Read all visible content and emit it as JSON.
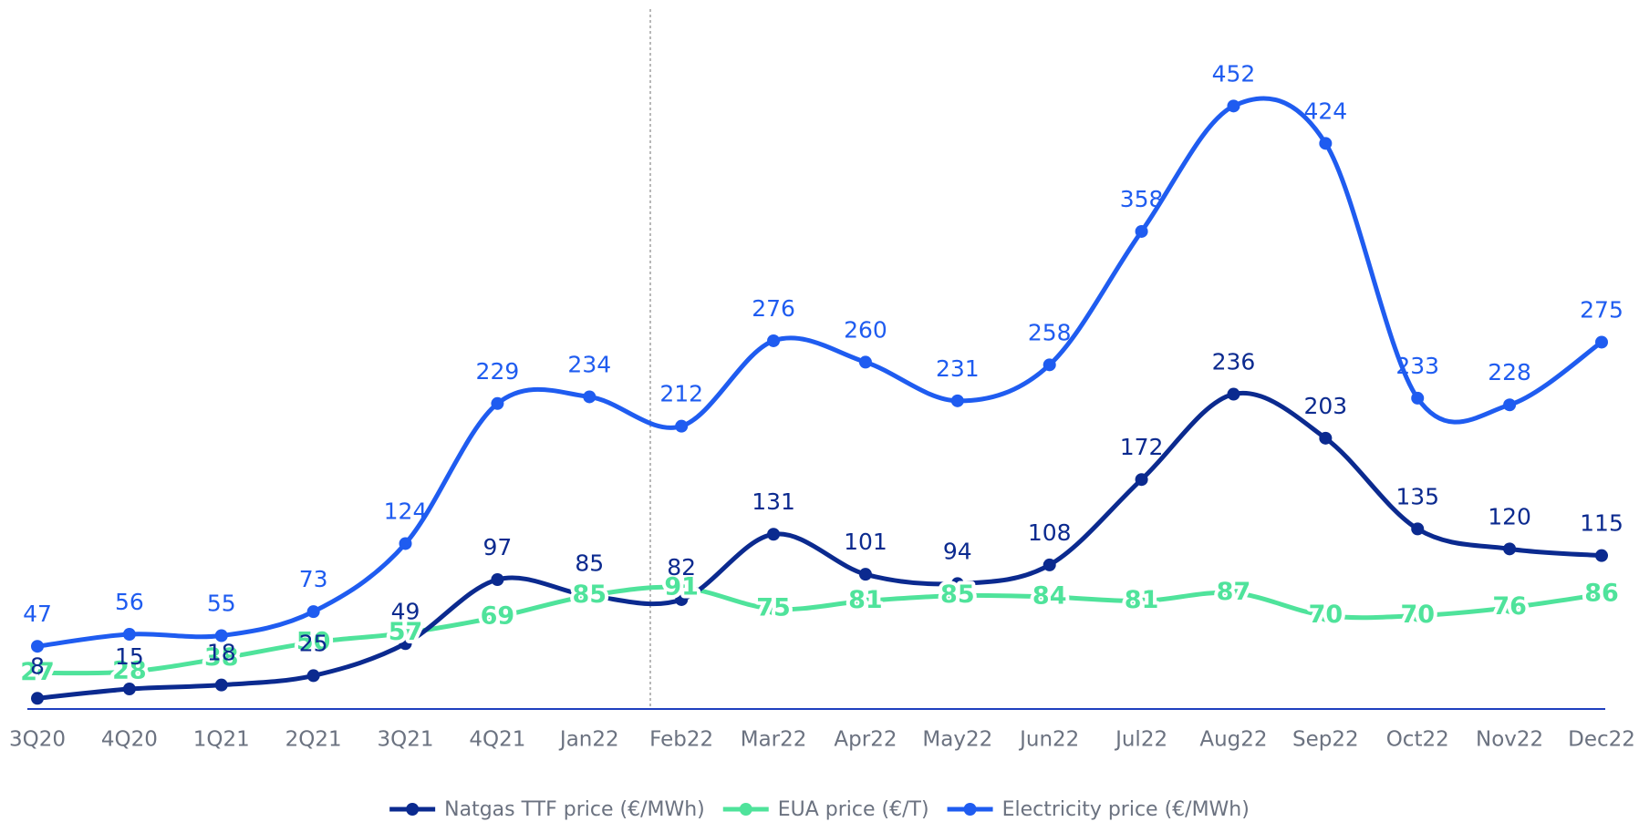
{
  "chart_data": {
    "type": "line",
    "categories": [
      "3Q20",
      "4Q20",
      "1Q21",
      "2Q21",
      "3Q21",
      "4Q21",
      "Jan22",
      "Feb22",
      "Mar22",
      "Apr22",
      "May22",
      "Jun22",
      "Jul22",
      "Aug22",
      "Sep22",
      "Oct22",
      "Nov22",
      "Dec22"
    ],
    "series": [
      {
        "name": "Natgas TTF price (€/MWh)",
        "color": "#0b2a8f",
        "values": [
          8,
          15,
          18,
          25,
          49,
          97,
          85,
          82,
          131,
          101,
          94,
          108,
          172,
          236,
          203,
          135,
          120,
          115
        ]
      },
      {
        "name": "EUA price (€/T)",
        "color": "#4fe39b",
        "values": [
          27,
          28,
          38,
          50,
          57,
          69,
          85,
          91,
          75,
          81,
          85,
          84,
          81,
          87,
          70,
          70,
          76,
          86
        ]
      },
      {
        "name": "Electricity price (€/MWh)",
        "color": "#1f5cf0",
        "values": [
          47,
          56,
          55,
          73,
          124,
          229,
          234,
          212,
          276,
          260,
          231,
          258,
          358,
          452,
          424,
          233,
          228,
          275
        ]
      }
    ],
    "ylim": [
      0,
      470
    ],
    "legend": "bottom"
  }
}
